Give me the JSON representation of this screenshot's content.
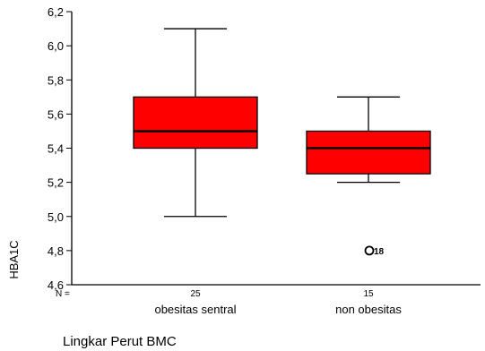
{
  "chart_data": {
    "type": "boxplot",
    "title": "",
    "xlabel": "Lingkar Perut BMC",
    "ylabel": "HBA1C",
    "ylim": [
      4.6,
      6.2
    ],
    "yticks": [
      "4,6",
      "4,8",
      "5,0",
      "5,2",
      "5,4",
      "5,6",
      "5,8",
      "6,0",
      "6,2"
    ],
    "n_label": "N =",
    "box_color": "#ff0000",
    "grid": false,
    "groups": [
      {
        "category": "obesitas sentral",
        "n": "25",
        "min": 5.0,
        "q1": 5.4,
        "median": 5.5,
        "q3": 5.7,
        "max": 6.1,
        "outliers": []
      },
      {
        "category": "non obesitas",
        "n": "15",
        "min": 5.2,
        "q1": 5.25,
        "median": 5.4,
        "q3": 5.5,
        "max": 5.7,
        "outliers": [
          {
            "value": 4.8,
            "label": "18"
          }
        ]
      }
    ]
  }
}
